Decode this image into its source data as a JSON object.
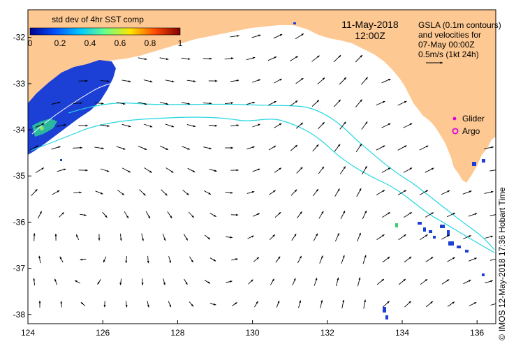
{
  "map": {
    "date": "11-May-2018",
    "time": "12:00Z",
    "lon_range": [
      124,
      136.5
    ],
    "lat_range": [
      -38.2,
      -31.4
    ],
    "lon_ticks": [
      124,
      126,
      128,
      130,
      132,
      134,
      136
    ],
    "lat_ticks": [
      -32,
      -33,
      -34,
      -35,
      -36,
      -37,
      -38
    ],
    "land_color": "#fdc892",
    "arrow_color": "#000000",
    "contour_color": "#22d6e0"
  },
  "colorbar": {
    "title": "std dev of 4hr SST comp",
    "tick_labels": [
      "0",
      "0.2",
      "0.4",
      "0.6",
      "0.8",
      "1"
    ],
    "colors": [
      "#00008f",
      "#0050ff",
      "#00c8ff",
      "#6aff8a",
      "#ffe600",
      "#ff4a00",
      "#800000"
    ]
  },
  "legend": {
    "line1": "GSLA (0.1m contours)",
    "line2": "and velocities for",
    "line3": "07-May 00:00Z",
    "line4": "0.5m/s (1kt 24h)",
    "glider_label": "Glider",
    "argo_label": "Argo",
    "glider_color": "#e000e0",
    "argo_color": "#e000e0"
  },
  "credit": {
    "copyright": "©",
    "text": "IMOS 12-May-2018 17:36 Hobart Time"
  }
}
